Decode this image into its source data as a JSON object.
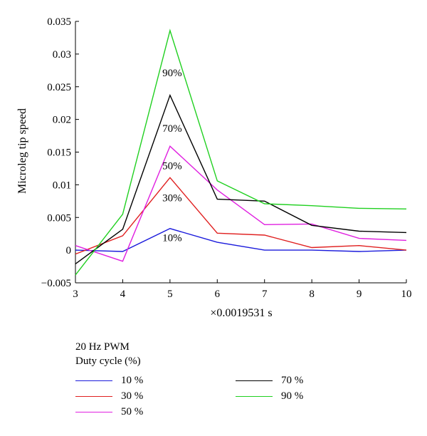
{
  "chart_data": {
    "type": "line",
    "xlabel": "×0.0019531 s",
    "ylabel": "Microleg tip speed",
    "xlim": [
      3,
      10
    ],
    "ylim": [
      -0.005,
      0.035
    ],
    "xticks": [
      "3",
      "4",
      "5",
      "6",
      "7",
      "8",
      "9",
      "10"
    ],
    "yticks": [
      "−0.005",
      "0",
      "0.005",
      "0.01",
      "0.015",
      "0.02",
      "0.025",
      "0.03",
      "0.035"
    ],
    "grid": false,
    "legend": {
      "title_line1": "20 Hz PWM",
      "title_line2": "Duty cycle (%)",
      "placement": "below"
    },
    "x": [
      3,
      4,
      5,
      6,
      7,
      8,
      9,
      10
    ],
    "series": [
      {
        "name": "10 %",
        "color": "#1a1adc",
        "values": [
          0.0,
          -0.0002,
          0.0033,
          0.0012,
          0.0,
          0.0,
          -0.0002,
          0.0
        ]
      },
      {
        "name": "30 %",
        "color": "#e02020",
        "values": [
          -0.0006,
          0.0022,
          0.0111,
          0.0026,
          0.0023,
          0.0004,
          0.0007,
          0.0
        ]
      },
      {
        "name": "50 %",
        "color": "#e020e0",
        "values": [
          0.0007,
          -0.0017,
          0.0159,
          0.0092,
          0.0039,
          0.004,
          0.0018,
          0.0015
        ]
      },
      {
        "name": "70 %",
        "color": "#000000",
        "values": [
          -0.0021,
          0.0032,
          0.0237,
          0.0078,
          0.0075,
          0.0038,
          0.0029,
          0.0027
        ]
      },
      {
        "name": "90 %",
        "color": "#20d020",
        "values": [
          -0.0038,
          0.0055,
          0.0336,
          0.0106,
          0.0071,
          0.0068,
          0.0064,
          0.0063
        ]
      }
    ],
    "annotations": [
      {
        "text": "90%",
        "x": 5,
        "y": 0.0266
      },
      {
        "text": "70%",
        "x": 5,
        "y": 0.0181
      },
      {
        "text": "50%",
        "x": 5,
        "y": 0.0124
      },
      {
        "text": "30%",
        "x": 5,
        "y": 0.0075
      },
      {
        "text": "10%",
        "x": 5,
        "y": 0.0014
      }
    ]
  }
}
